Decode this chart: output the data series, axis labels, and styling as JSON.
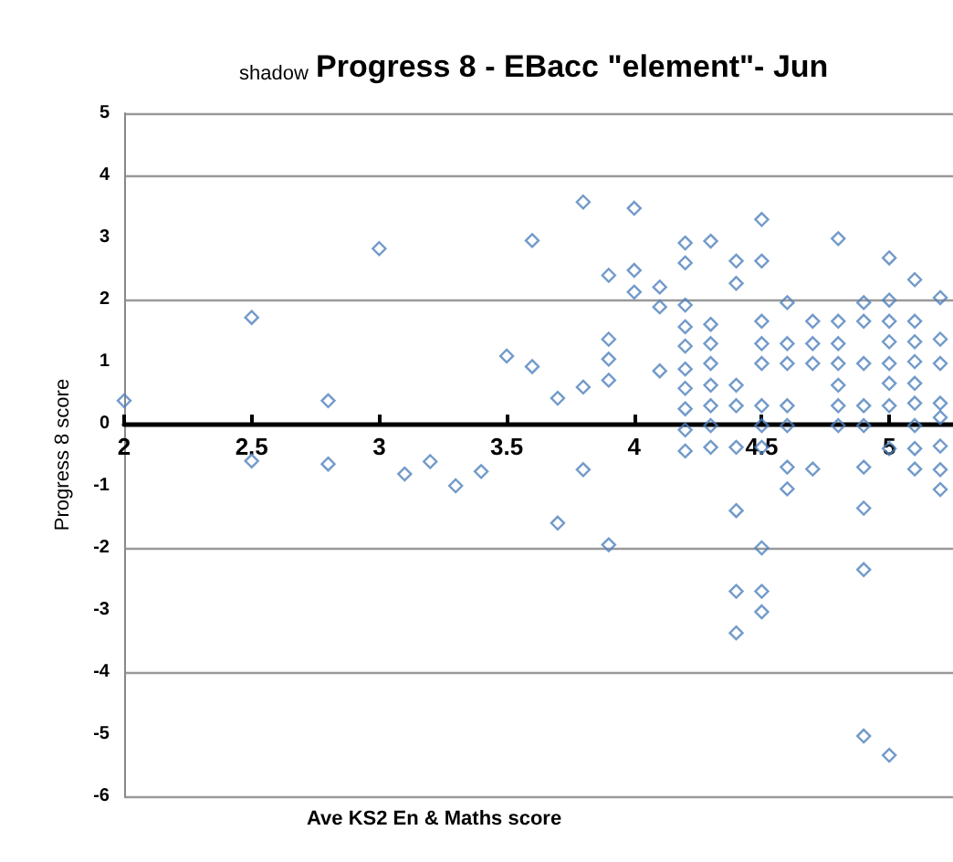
{
  "chart_data": {
    "type": "scatter",
    "title": "Progress 8 - EBacc \"element\"- Jun",
    "subtitle": "shadow",
    "xlabel": "Ave KS2 En & Maths score",
    "ylabel": "Progress 8 score",
    "xlim": [
      2,
      5.25
    ],
    "xticks": [
      2,
      2.5,
      3,
      3.5,
      4,
      4.5,
      5
    ],
    "ylim": [
      -6,
      5
    ],
    "yticks": [
      -6,
      -5,
      -4,
      -3,
      -2,
      -1,
      0,
      1,
      2,
      3,
      4,
      5
    ],
    "grid": "y",
    "marker": "diamond",
    "series": [
      {
        "color": "#4f81bd",
        "x": [
          2.0,
          2.5,
          2.8,
          3.0,
          2.8,
          3.1,
          3.2,
          3.3,
          2.5,
          3.4,
          3.7,
          3.8,
          3.9,
          3.5,
          3.6,
          3.6,
          3.7,
          3.8,
          3.8,
          3.9,
          3.9,
          3.9,
          3.9,
          4.0,
          4.0,
          4.0,
          4.1,
          4.1,
          4.1,
          4.2,
          4.2,
          4.2,
          4.2,
          4.2,
          4.2,
          4.2,
          4.2,
          4.2,
          4.3,
          4.3,
          4.3,
          4.3,
          4.3,
          4.3,
          4.3,
          4.4,
          4.4,
          4.4,
          4.4,
          4.5,
          4.5,
          4.5,
          4.5,
          4.5,
          4.5,
          4.5,
          4.6,
          4.6,
          4.6,
          4.6,
          4.6,
          4.7,
          4.7,
          4.7,
          4.8,
          4.8,
          4.8,
          4.8,
          4.8,
          4.8,
          4.8,
          4.9,
          4.9,
          4.9,
          4.9,
          4.9,
          5.0,
          5.0,
          5.0,
          5.0,
          5.0,
          5.0,
          5.0,
          5.1,
          5.1,
          5.1,
          5.1,
          5.1,
          5.1,
          5.1,
          5.2,
          5.2,
          5.2,
          5.2,
          4.2,
          4.3,
          4.4,
          4.5,
          4.6,
          4.6,
          4.7,
          4.4,
          4.5,
          4.4,
          4.5,
          4.5,
          4.4,
          4.9,
          4.9,
          4.9,
          4.9,
          5.0,
          5.0,
          5.1,
          5.1,
          5.2,
          5.2,
          5.2,
          5.2
        ],
        "values": [
          0.37,
          1.71,
          0.37,
          2.82,
          -0.65,
          -0.81,
          -0.61,
          -1.0,
          -0.6,
          -0.77,
          -1.6,
          -0.74,
          -1.95,
          1.09,
          2.95,
          0.92,
          0.41,
          3.57,
          0.59,
          2.39,
          1.36,
          1.04,
          0.7,
          3.47,
          2.47,
          2.12,
          2.2,
          1.88,
          0.85,
          2.91,
          2.59,
          1.91,
          1.56,
          1.25,
          0.88,
          0.57,
          0.24,
          -0.1,
          2.94,
          1.6,
          1.29,
          0.97,
          0.62,
          0.29,
          -0.03,
          2.62,
          2.26,
          0.62,
          0.29,
          3.29,
          2.62,
          1.65,
          1.29,
          0.97,
          0.29,
          -0.03,
          1.95,
          1.29,
          0.97,
          0.29,
          -0.03,
          1.65,
          1.29,
          0.97,
          2.98,
          1.65,
          1.29,
          0.97,
          0.62,
          0.29,
          -0.03,
          1.95,
          1.65,
          0.97,
          0.29,
          -0.03,
          2.67,
          1.99,
          1.65,
          1.32,
          0.97,
          0.65,
          0.29,
          2.32,
          1.65,
          1.32,
          1.0,
          0.65,
          0.33,
          -0.03,
          2.03,
          1.36,
          0.97,
          0.33,
          -0.44,
          -0.38,
          -0.38,
          -0.38,
          -0.7,
          -1.05,
          -0.73,
          -1.4,
          -2.0,
          -2.7,
          -2.7,
          -3.03,
          -3.37,
          -0.7,
          -1.36,
          -2.35,
          -5.03,
          -5.34,
          -0.4,
          -0.4,
          -0.73,
          -0.74,
          -1.06,
          -0.36,
          0.1
        ]
      }
    ]
  }
}
